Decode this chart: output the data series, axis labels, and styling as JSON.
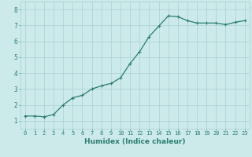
{
  "x": [
    0,
    1,
    2,
    3,
    4,
    5,
    6,
    7,
    8,
    9,
    10,
    11,
    12,
    13,
    14,
    15,
    16,
    17,
    18,
    19,
    20,
    21,
    22,
    23
  ],
  "y": [
    1.3,
    1.3,
    1.25,
    1.4,
    2.0,
    2.45,
    2.6,
    3.0,
    3.2,
    3.35,
    3.7,
    4.6,
    5.35,
    6.3,
    6.95,
    7.6,
    7.55,
    7.3,
    7.15,
    7.15,
    7.15,
    7.05,
    7.2,
    7.3
  ],
  "line_color": "#2a7d6e",
  "marker": "+",
  "marker_size": 3,
  "line_width": 0.9,
  "xlabel": "Humidex (Indice chaleur)",
  "xlabel_fontsize": 6.5,
  "background_color": "#cceaea",
  "grid_color": "#aacfcf",
  "tick_color": "#2a7d6e",
  "label_color": "#2a7d6e",
  "xlim": [
    -0.5,
    23.5
  ],
  "ylim": [
    0.5,
    8.5
  ],
  "yticks": [
    1,
    2,
    3,
    4,
    5,
    6,
    7,
    8
  ],
  "xticks": [
    0,
    1,
    2,
    3,
    4,
    5,
    6,
    7,
    8,
    9,
    10,
    11,
    12,
    13,
    14,
    15,
    16,
    17,
    18,
    19,
    20,
    21,
    22,
    23
  ],
  "tick_fontsize": 5.0,
  "ytick_fontsize": 5.5
}
